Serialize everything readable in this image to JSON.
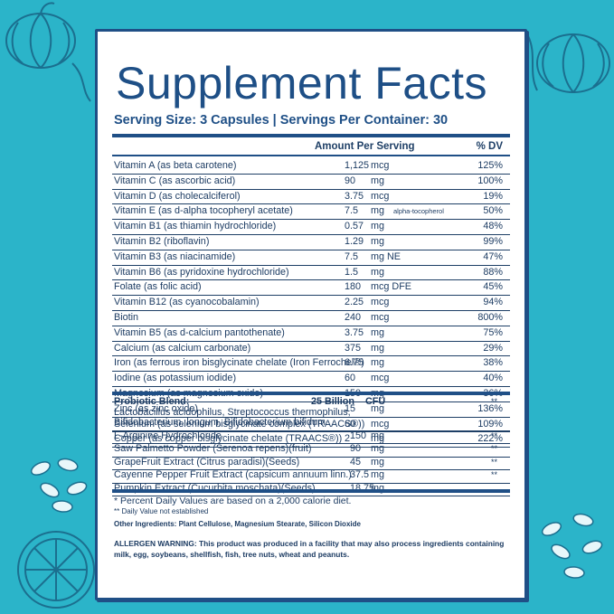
{
  "title": "Supplement Facts",
  "serving": "Serving Size: 3 Capsules | Servings Per Container: 30",
  "header": {
    "amount": "Amount Per Serving",
    "dv": "% DV"
  },
  "nutrients": [
    {
      "name": "Vitamin A (as beta carotene)",
      "amount": "1,125",
      "unit": "mcg",
      "note": "",
      "dv": "125%"
    },
    {
      "name": "Vitamin C (as ascorbic acid)",
      "amount": "90",
      "unit": "mg",
      "note": "",
      "dv": "100%"
    },
    {
      "name": "Vitamin D (as cholecalciferol)",
      "amount": "3.75",
      "unit": "mcg",
      "note": "",
      "dv": "19%"
    },
    {
      "name": "Vitamin E (as d-alpha tocopheryl acetate)",
      "amount": "7.5",
      "unit": "mg",
      "note": "alpha-tocopherol",
      "dv": "50%"
    },
    {
      "name": "Vitamin B1 (as thiamin hydrochloride)",
      "amount": "0.57",
      "unit": "mg",
      "note": "",
      "dv": "48%"
    },
    {
      "name": "Vitamin B2 (riboflavin)",
      "amount": "1.29",
      "unit": "mg",
      "note": "",
      "dv": "99%"
    },
    {
      "name": "Vitamin B3 (as niacinamide)",
      "amount": "7.5",
      "unit": "mg NE",
      "note": "",
      "dv": "47%"
    },
    {
      "name": "Vitamin B6 (as pyridoxine hydrochloride)",
      "amount": "1.5",
      "unit": "mg",
      "note": "",
      "dv": "88%"
    },
    {
      "name": "Folate (as folic acid)",
      "amount": "180",
      "unit": "mcg DFE",
      "note": "",
      "dv": "45%"
    },
    {
      "name": "Vitamin B12 (as cyanocobalamin)",
      "amount": "2.25",
      "unit": "mcg",
      "note": "",
      "dv": "94%"
    },
    {
      "name": "Biotin",
      "amount": "240",
      "unit": "mcg",
      "note": "",
      "dv": "800%"
    },
    {
      "name": "Vitamin B5 (as d-calcium pantothenate)",
      "amount": "3.75",
      "unit": "mg",
      "note": "",
      "dv": "75%"
    },
    {
      "name": "Calcium (as calcium carbonate)",
      "amount": "375",
      "unit": "mg",
      "note": "",
      "dv": "29%"
    },
    {
      "name": "Iron (as ferrous iron bisglycinate chelate (Iron Ferrochel®)",
      "amount": "6.75",
      "unit": "mg",
      "note": "",
      "dv": "38%"
    },
    {
      "name": "Iodine (as potassium iodide)",
      "amount": "60",
      "unit": "mcg",
      "note": "",
      "dv": "40%"
    },
    {
      "name": "Magnesium (as magnesium oxide)",
      "amount": "150",
      "unit": "mg",
      "note": "",
      "dv": "36%"
    },
    {
      "name": "Zinc (as zinc oxide)",
      "amount": "15",
      "unit": "mg",
      "note": "",
      "dv": "136%"
    },
    {
      "name": "Selenium (as selenium bisglycinate complex (TRAACS®))",
      "amount": "60",
      "unit": "mcg",
      "note": "",
      "dv": "109%"
    },
    {
      "name": "Copper (as copper bisglycinate chelate (TRAACS®))",
      "amount": "2",
      "unit": "mg",
      "note": "",
      "dv": "222%"
    }
  ],
  "blend": [
    {
      "name": "Probiotic Blend:",
      "amount": "25 Billion",
      "unit": "CFU",
      "dv": "**",
      "sub": [
        "Lactobacillus acidophilus, Streptococcus thermophilus,",
        "Bifidobacterium, longum, Bifidobacterium bifidum"
      ]
    },
    {
      "name": "L-Arginine Hydrochloride",
      "amount": "150",
      "unit": "mg",
      "dv": "**"
    },
    {
      "name": "Saw Palmetto Powder (Serenoa repens)(fruit)",
      "amount": "90",
      "unit": "mg",
      "dv": "**"
    },
    {
      "name": "GrapeFruit Extract (Citrus paradisi)(Seeds)",
      "amount": "45",
      "unit": "mg",
      "dv": "**"
    },
    {
      "name": "Cayenne Pepper Fruit Extract (capsicum annuum linn.)",
      "amount": "37.5",
      "unit": "mg",
      "dv": "**"
    },
    {
      "name": "Pumpkin Extract (Cucurbita moschata)(Seeds)",
      "amount": "18.75",
      "unit": "mg",
      "dv": ""
    }
  ],
  "footnotes": {
    "dv_note": "* Percent Daily Values are based on a 2,000 calorie diet.",
    "not_established": "** Daily Value not established",
    "other": "Other Ingredients: Plant Cellulose, Magnesium Stearate, Silicon Dioxide",
    "allergen": "ALLERGEN WARNING: This product was produced in a facility that may also process ingredients containing milk, egg, soybeans, shellfish, fish, tree nuts, wheat and peanuts."
  },
  "colors": {
    "background": "#2bb4c9",
    "brand": "#1e4f86",
    "text": "#1d3c63"
  }
}
